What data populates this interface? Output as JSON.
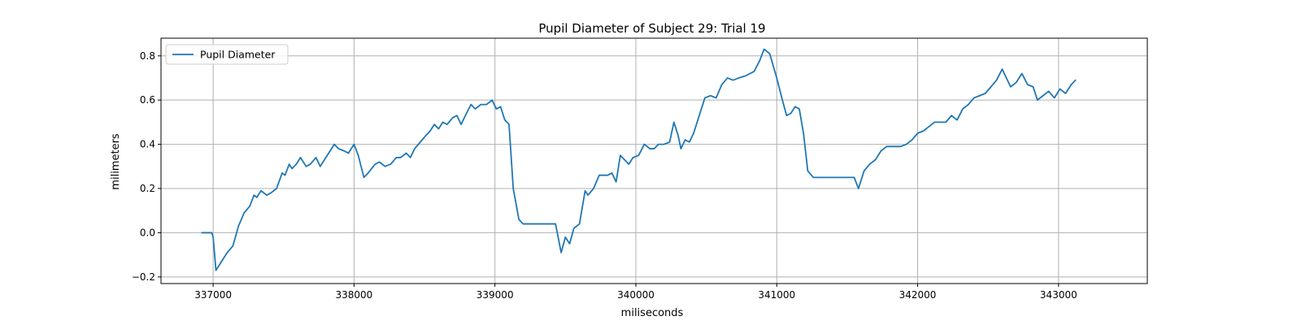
{
  "chart_data": {
    "type": "line",
    "title": "Pupil Diameter of Subject 29: Trial 19",
    "xlabel": "miliseconds",
    "ylabel": "milimeters",
    "xlim": [
      336630,
      343630
    ],
    "ylim": [
      -0.23,
      0.88
    ],
    "x_ticks": [
      337000,
      338000,
      339000,
      340000,
      341000,
      342000,
      343000
    ],
    "y_ticks": [
      -0.2,
      0.0,
      0.2,
      0.4,
      0.6,
      0.8
    ],
    "grid": true,
    "legend": {
      "placement": "top-left",
      "entries": [
        "Pupil Diameter"
      ]
    },
    "colors": {
      "series": "#1f77b4"
    },
    "series": [
      {
        "name": "Pupil Diameter",
        "points": [
          [
            336920,
            0.0
          ],
          [
            336990,
            0.0
          ],
          [
            337000,
            -0.02
          ],
          [
            337020,
            -0.17
          ],
          [
            337060,
            -0.13
          ],
          [
            337100,
            -0.09
          ],
          [
            337140,
            -0.06
          ],
          [
            337180,
            0.03
          ],
          [
            337220,
            0.09
          ],
          [
            337260,
            0.12
          ],
          [
            337290,
            0.17
          ],
          [
            337310,
            0.16
          ],
          [
            337340,
            0.19
          ],
          [
            337380,
            0.17
          ],
          [
            337410,
            0.18
          ],
          [
            337450,
            0.2
          ],
          [
            337490,
            0.27
          ],
          [
            337510,
            0.26
          ],
          [
            337540,
            0.31
          ],
          [
            337560,
            0.29
          ],
          [
            337590,
            0.31
          ],
          [
            337620,
            0.34
          ],
          [
            337660,
            0.3
          ],
          [
            337690,
            0.31
          ],
          [
            337730,
            0.34
          ],
          [
            337760,
            0.3
          ],
          [
            337800,
            0.34
          ],
          [
            337830,
            0.37
          ],
          [
            337860,
            0.4
          ],
          [
            337890,
            0.38
          ],
          [
            337930,
            0.37
          ],
          [
            337960,
            0.36
          ],
          [
            338000,
            0.4
          ],
          [
            338030,
            0.35
          ],
          [
            338070,
            0.25
          ],
          [
            338100,
            0.27
          ],
          [
            338150,
            0.31
          ],
          [
            338180,
            0.32
          ],
          [
            338220,
            0.3
          ],
          [
            338260,
            0.31
          ],
          [
            338300,
            0.34
          ],
          [
            338330,
            0.34
          ],
          [
            338370,
            0.36
          ],
          [
            338400,
            0.34
          ],
          [
            338430,
            0.38
          ],
          [
            338470,
            0.41
          ],
          [
            338510,
            0.44
          ],
          [
            338540,
            0.46
          ],
          [
            338570,
            0.49
          ],
          [
            338600,
            0.47
          ],
          [
            338630,
            0.5
          ],
          [
            338660,
            0.49
          ],
          [
            338700,
            0.52
          ],
          [
            338730,
            0.53
          ],
          [
            338760,
            0.49
          ],
          [
            338790,
            0.53
          ],
          [
            338830,
            0.58
          ],
          [
            338860,
            0.56
          ],
          [
            338900,
            0.58
          ],
          [
            338940,
            0.58
          ],
          [
            338980,
            0.6
          ],
          [
            339010,
            0.56
          ],
          [
            339040,
            0.57
          ],
          [
            339070,
            0.51
          ],
          [
            339100,
            0.49
          ],
          [
            339130,
            0.2
          ],
          [
            339170,
            0.06
          ],
          [
            339200,
            0.04
          ],
          [
            339300,
            0.04
          ],
          [
            339400,
            0.04
          ],
          [
            339430,
            0.04
          ],
          [
            339470,
            -0.09
          ],
          [
            339500,
            -0.02
          ],
          [
            339530,
            -0.05
          ],
          [
            339560,
            0.02
          ],
          [
            339600,
            0.04
          ],
          [
            339640,
            0.19
          ],
          [
            339660,
            0.17
          ],
          [
            339700,
            0.2
          ],
          [
            339740,
            0.26
          ],
          [
            339800,
            0.26
          ],
          [
            339830,
            0.27
          ],
          [
            339860,
            0.23
          ],
          [
            339890,
            0.35
          ],
          [
            339920,
            0.33
          ],
          [
            339950,
            0.31
          ],
          [
            339980,
            0.34
          ],
          [
            340020,
            0.35
          ],
          [
            340060,
            0.4
          ],
          [
            340100,
            0.38
          ],
          [
            340130,
            0.38
          ],
          [
            340160,
            0.4
          ],
          [
            340200,
            0.4
          ],
          [
            340240,
            0.41
          ],
          [
            340270,
            0.5
          ],
          [
            340300,
            0.44
          ],
          [
            340320,
            0.38
          ],
          [
            340350,
            0.42
          ],
          [
            340380,
            0.41
          ],
          [
            340410,
            0.45
          ],
          [
            340450,
            0.53
          ],
          [
            340490,
            0.61
          ],
          [
            340530,
            0.62
          ],
          [
            340570,
            0.61
          ],
          [
            340610,
            0.67
          ],
          [
            340650,
            0.7
          ],
          [
            340690,
            0.69
          ],
          [
            340730,
            0.7
          ],
          [
            340780,
            0.71
          ],
          [
            340840,
            0.73
          ],
          [
            340880,
            0.78
          ],
          [
            340910,
            0.83
          ],
          [
            340950,
            0.81
          ],
          [
            341000,
            0.7
          ],
          [
            341040,
            0.6
          ],
          [
            341070,
            0.53
          ],
          [
            341100,
            0.54
          ],
          [
            341130,
            0.57
          ],
          [
            341160,
            0.56
          ],
          [
            341190,
            0.45
          ],
          [
            341220,
            0.28
          ],
          [
            341260,
            0.25
          ],
          [
            341300,
            0.25
          ],
          [
            341400,
            0.25
          ],
          [
            341500,
            0.25
          ],
          [
            341550,
            0.25
          ],
          [
            341580,
            0.2
          ],
          [
            341620,
            0.28
          ],
          [
            341660,
            0.31
          ],
          [
            341700,
            0.33
          ],
          [
            341740,
            0.37
          ],
          [
            341780,
            0.39
          ],
          [
            341820,
            0.39
          ],
          [
            341880,
            0.39
          ],
          [
            341920,
            0.4
          ],
          [
            341960,
            0.42
          ],
          [
            342000,
            0.45
          ],
          [
            342040,
            0.46
          ],
          [
            342080,
            0.48
          ],
          [
            342120,
            0.5
          ],
          [
            342160,
            0.5
          ],
          [
            342200,
            0.5
          ],
          [
            342240,
            0.53
          ],
          [
            342280,
            0.51
          ],
          [
            342320,
            0.56
          ],
          [
            342360,
            0.58
          ],
          [
            342400,
            0.61
          ],
          [
            342440,
            0.62
          ],
          [
            342480,
            0.63
          ],
          [
            342520,
            0.66
          ],
          [
            342560,
            0.69
          ],
          [
            342600,
            0.74
          ],
          [
            342630,
            0.7
          ],
          [
            342660,
            0.66
          ],
          [
            342700,
            0.68
          ],
          [
            342740,
            0.72
          ],
          [
            342780,
            0.67
          ],
          [
            342820,
            0.66
          ],
          [
            342850,
            0.6
          ],
          [
            342890,
            0.62
          ],
          [
            342930,
            0.64
          ],
          [
            342970,
            0.61
          ],
          [
            343010,
            0.65
          ],
          [
            343050,
            0.63
          ],
          [
            343090,
            0.67
          ],
          [
            343120,
            0.69
          ]
        ]
      }
    ]
  }
}
